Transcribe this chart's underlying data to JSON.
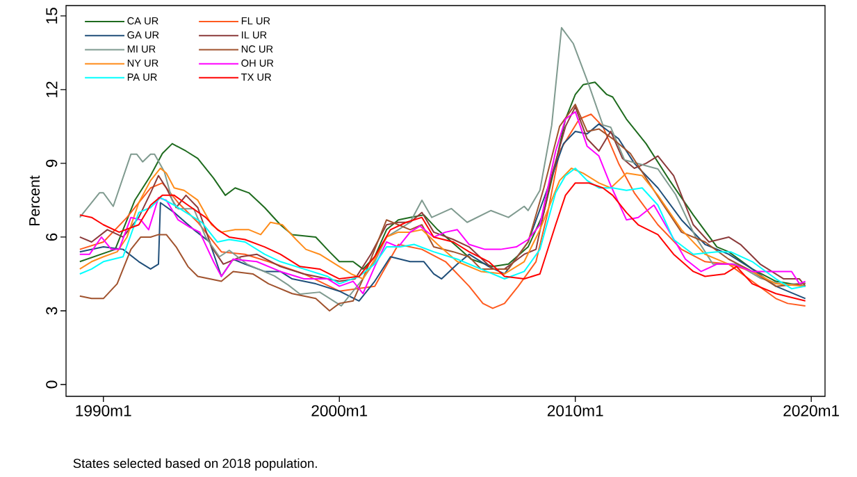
{
  "chart_data": {
    "type": "line",
    "ylabel": "Percent",
    "annotations": [
      "States selected based on 2018 population."
    ],
    "xlim": [
      "1988-06",
      "2020-08"
    ],
    "ylim": [
      -0.48,
      15.42
    ],
    "xticks": [
      {
        "value": "1990-01",
        "label": "1990m1"
      },
      {
        "value": "2000-01",
        "label": "2000m1"
      },
      {
        "value": "2010-01",
        "label": "2010m1"
      },
      {
        "value": "2020-01",
        "label": "2020m1"
      }
    ],
    "yticks": [
      0,
      3,
      6,
      9,
      12,
      15
    ],
    "grid": false,
    "legend": "top left",
    "marker": "none",
    "line_style": "solid",
    "series": [
      {
        "name": "CA UR",
        "color": "#1e6b1e",
        "x": [
          "1989-01",
          "1990-07",
          "1991-05",
          "1992-01",
          "1992-07",
          "1992-12",
          "1993-07",
          "1994-01",
          "1994-09",
          "1995-03",
          "1995-08",
          "1996-03",
          "1996-11",
          "1997-07",
          "1998-01",
          "1999-01",
          "1999-08",
          "2000-01",
          "2000-08",
          "2001-01",
          "2001-07",
          "2002-01",
          "2002-07",
          "2003-01",
          "2003-08",
          "2004-03",
          "2005-01",
          "2005-08",
          "2006-07",
          "2007-03",
          "2008-01",
          "2008-09",
          "2009-03",
          "2009-08",
          "2010-01",
          "2010-05",
          "2010-11",
          "2011-05",
          "2011-08",
          "2012-03",
          "2013-01",
          "2014-01",
          "2015-01",
          "2016-01",
          "2016-07",
          "2017-07",
          "2018-07",
          "2019-10"
        ],
        "values": [
          5.0,
          5.5,
          7.5,
          8.5,
          9.4,
          9.8,
          9.5,
          9.2,
          8.4,
          7.7,
          8.0,
          7.8,
          7.2,
          6.5,
          6.1,
          6.0,
          5.4,
          5.0,
          5.0,
          4.7,
          5.2,
          6.3,
          6.7,
          6.8,
          6.9,
          6.3,
          5.6,
          5.1,
          4.8,
          4.9,
          5.6,
          7.0,
          9.0,
          10.8,
          11.8,
          12.2,
          12.3,
          11.8,
          11.7,
          10.8,
          9.8,
          8.3,
          6.9,
          5.6,
          5.4,
          4.7,
          4.2,
          4.0
        ]
      },
      {
        "name": "FL UR",
        "color": "#ff5a1e",
        "x": [
          "1989-01",
          "1990-01",
          "1991-01",
          "1992-01",
          "1992-07",
          "1993-03",
          "1994-01",
          "1995-01",
          "1996-01",
          "1997-01",
          "1998-07",
          "2000-01",
          "2001-07",
          "2002-07",
          "2003-07",
          "2004-07",
          "2005-07",
          "2006-02",
          "2006-07",
          "2007-01",
          "2007-08",
          "2008-05",
          "2008-11",
          "2009-05",
          "2010-03",
          "2010-09",
          "2011-03",
          "2011-11",
          "2012-07",
          "2013-07",
          "2014-07",
          "2015-07",
          "2016-07",
          "2017-07",
          "2018-07",
          "2019-01",
          "2019-10"
        ],
        "values": [
          5.5,
          5.8,
          6.8,
          8.0,
          8.2,
          7.4,
          6.6,
          5.4,
          5.3,
          5.0,
          4.5,
          3.8,
          4.0,
          5.7,
          5.5,
          5.0,
          4.0,
          3.3,
          3.1,
          3.3,
          4.0,
          5.0,
          7.0,
          9.5,
          10.8,
          11.0,
          10.5,
          9.0,
          7.8,
          6.5,
          5.5,
          5.0,
          4.9,
          4.2,
          3.5,
          3.3,
          3.2
        ]
      },
      {
        "name": "GA UR",
        "color": "#1f4e79",
        "x": [
          "1989-01",
          "1990-01",
          "1990-11",
          "1991-07",
          "1992-01",
          "1992-05",
          "1992-06",
          "1993-01",
          "1993-11",
          "1994-07",
          "1995-01",
          "1995-07",
          "1996-01",
          "1996-11",
          "1997-07",
          "1998-01",
          "1999-01",
          "2000-01",
          "2000-11",
          "2001-07",
          "2002-03",
          "2003-01",
          "2003-08",
          "2004-01",
          "2004-05",
          "2005-01",
          "2005-07",
          "2006-05",
          "2007-01",
          "2008-01",
          "2008-11",
          "2009-07",
          "2010-01",
          "2010-07",
          "2011-01",
          "2011-11",
          "2012-07",
          "2013-07",
          "2014-07",
          "2015-07",
          "2016-07",
          "2017-07",
          "2018-07",
          "2019-10"
        ],
        "values": [
          5.4,
          5.6,
          5.5,
          5.0,
          4.7,
          4.9,
          7.4,
          7.0,
          6.3,
          5.8,
          4.4,
          5.1,
          4.9,
          4.6,
          4.6,
          4.3,
          4.1,
          3.8,
          3.4,
          4.2,
          5.2,
          5.0,
          5.0,
          4.5,
          4.3,
          4.9,
          5.3,
          4.8,
          4.5,
          5.8,
          8.0,
          9.8,
          10.3,
          10.2,
          10.6,
          10.0,
          9.0,
          8.0,
          6.7,
          5.7,
          5.3,
          4.7,
          4.0,
          3.5
        ]
      },
      {
        "name": "IL UR",
        "color": "#8b3a3a",
        "x": [
          "1989-01",
          "1989-07",
          "1990-03",
          "1990-11",
          "1991-07",
          "1992-01",
          "1992-05",
          "1992-09",
          "1993-02",
          "1993-07",
          "1994-01",
          "1994-08",
          "1995-02",
          "1995-11",
          "1996-07",
          "1997-07",
          "1998-07",
          "1999-07",
          "2000-01",
          "2000-09",
          "2001-05",
          "2002-01",
          "2002-07",
          "2003-01",
          "2003-07",
          "2004-01",
          "2004-11",
          "2005-07",
          "2006-07",
          "2007-01",
          "2007-11",
          "2008-05",
          "2009-01",
          "2009-08",
          "2010-01",
          "2010-07",
          "2011-01",
          "2011-07",
          "2012-01",
          "2012-07",
          "2013-01",
          "2013-07",
          "2014-03",
          "2015-01",
          "2015-09",
          "2016-07",
          "2017-01",
          "2017-11",
          "2018-11",
          "2019-07",
          "2019-10"
        ],
        "values": [
          6.0,
          5.8,
          6.3,
          6.0,
          6.8,
          7.8,
          8.5,
          8.0,
          7.2,
          7.7,
          7.2,
          5.6,
          4.9,
          5.2,
          5.3,
          4.8,
          4.5,
          4.3,
          4.2,
          4.3,
          5.3,
          6.5,
          6.6,
          6.6,
          7.0,
          6.2,
          5.9,
          5.6,
          4.7,
          4.7,
          5.3,
          5.5,
          8.5,
          10.5,
          11.3,
          10.0,
          9.5,
          10.3,
          9.2,
          8.8,
          9.0,
          9.3,
          8.5,
          6.5,
          5.8,
          6.0,
          5.7,
          4.9,
          4.3,
          4.3,
          4.0
        ]
      },
      {
        "name": "MI UR",
        "color": "#7f9a8f",
        "x": [
          "1989-01",
          "1989-11",
          "1990-01",
          "1990-06",
          "1991-03",
          "1991-06",
          "1991-09",
          "1992-01",
          "1992-03",
          "1992-08",
          "1992-12",
          "1993-03",
          "1993-11",
          "1994-05",
          "1994-12",
          "1995-05",
          "1996-02",
          "1997-04",
          "1997-11",
          "1998-05",
          "1999-03",
          "2000-02",
          "2001-01",
          "2001-07",
          "2002-01",
          "2002-07",
          "2003-01",
          "2003-07",
          "2003-12",
          "2004-10",
          "2005-06",
          "2006-06",
          "2007-03",
          "2007-11",
          "2008-01",
          "2008-07",
          "2009-01",
          "2009-06",
          "2009-12",
          "2010-08",
          "2011-03",
          "2011-07",
          "2012-02",
          "2013-07",
          "2014-04",
          "2015-02",
          "2015-11",
          "2016-11",
          "2017-11",
          "2018-11",
          "2019-10"
        ],
        "values": [
          6.8,
          7.8,
          7.8,
          7.25,
          9.37,
          9.37,
          9.06,
          9.37,
          9.37,
          8.66,
          7.5,
          7.15,
          7.15,
          6.0,
          5.2,
          5.46,
          4.9,
          4.42,
          4.05,
          3.68,
          3.76,
          3.2,
          4.3,
          5.0,
          6.0,
          6.3,
          6.6,
          7.5,
          6.8,
          7.16,
          6.6,
          7.08,
          6.8,
          7.25,
          7.08,
          7.9,
          10.55,
          14.52,
          13.87,
          12.17,
          10.56,
          10.47,
          9.14,
          8.77,
          7.73,
          6.03,
          4.9,
          4.9,
          4.33,
          4.05,
          4.13
        ]
      },
      {
        "name": "NC UR",
        "color": "#a0522d",
        "x": [
          "1989-01",
          "1989-07",
          "1990-01",
          "1990-08",
          "1991-03",
          "1991-08",
          "1992-01",
          "1992-05",
          "1992-09",
          "1993-02",
          "1993-08",
          "1994-01",
          "1995-01",
          "1995-07",
          "1996-05",
          "1997-01",
          "1998-01",
          "1999-01",
          "1999-08",
          "2000-01",
          "2000-08",
          "2001-01",
          "2001-07",
          "2002-01",
          "2002-07",
          "2003-01",
          "2003-07",
          "2004-01",
          "2004-11",
          "2005-07",
          "2006-01",
          "2006-09",
          "2007-03",
          "2008-01",
          "2008-09",
          "2009-05",
          "2010-01",
          "2010-07",
          "2011-01",
          "2011-08",
          "2012-05",
          "2013-01",
          "2013-09",
          "2014-07",
          "2015-07",
          "2016-07",
          "2017-07",
          "2018-07",
          "2019-10"
        ],
        "values": [
          3.6,
          3.5,
          3.5,
          4.1,
          5.5,
          6.0,
          6.0,
          6.1,
          6.1,
          5.6,
          4.8,
          4.4,
          4.2,
          4.6,
          4.5,
          4.1,
          3.7,
          3.5,
          3.0,
          3.3,
          3.4,
          4.3,
          5.5,
          6.7,
          6.5,
          6.3,
          6.5,
          5.6,
          5.4,
          5.2,
          4.7,
          4.7,
          4.7,
          5.8,
          8.0,
          10.5,
          11.4,
          10.3,
          10.4,
          10.0,
          9.4,
          8.4,
          7.4,
          6.2,
          5.8,
          5.1,
          4.6,
          4.0,
          4.1
        ]
      },
      {
        "name": "NY UR",
        "color": "#ff8c1a",
        "x": [
          "1989-01",
          "1989-07",
          "1990-01",
          "1990-08",
          "1991-01",
          "1991-07",
          "1992-01",
          "1992-06",
          "1992-09",
          "1993-01",
          "1993-06",
          "1994-01",
          "1994-08",
          "1995-01",
          "1995-08",
          "1996-03",
          "1996-09",
          "1997-02",
          "1997-08",
          "1998-03",
          "1998-08",
          "1999-03",
          "2000-01",
          "2000-07",
          "2001-01",
          "2001-07",
          "2002-01",
          "2002-07",
          "2003-01",
          "2003-07",
          "2004-03",
          "2005-01",
          "2006-01",
          "2007-01",
          "2007-11",
          "2008-07",
          "2009-05",
          "2009-11",
          "2010-05",
          "2011-01",
          "2011-07",
          "2012-03",
          "2012-11",
          "2013-07",
          "2014-07",
          "2015-07",
          "2016-07",
          "2017-07",
          "2018-07",
          "2019-10"
        ],
        "values": [
          4.7,
          5.0,
          5.2,
          5.4,
          6.0,
          7.4,
          8.3,
          8.8,
          8.6,
          8.0,
          7.9,
          7.5,
          6.5,
          6.2,
          6.3,
          6.3,
          6.1,
          6.6,
          6.5,
          5.9,
          5.5,
          5.3,
          4.8,
          4.5,
          4.3,
          5.1,
          6.0,
          6.2,
          6.2,
          6.3,
          5.7,
          5.0,
          4.6,
          4.5,
          5.0,
          6.3,
          8.3,
          8.8,
          8.6,
          8.2,
          8.0,
          8.6,
          8.5,
          7.7,
          6.3,
          5.3,
          4.9,
          4.6,
          4.1,
          4.0
        ]
      },
      {
        "name": "OH UR",
        "color": "#ff00ff",
        "x": [
          "1989-01",
          "1989-06",
          "1989-12",
          "1990-05",
          "1990-09",
          "1991-03",
          "1991-08",
          "1991-12",
          "1992-05",
          "1992-09",
          "1993-03",
          "1993-09",
          "1994-02",
          "1994-09",
          "1995-01",
          "1995-07",
          "1996-07",
          "1997-07",
          "1998-07",
          "1999-07",
          "2000-01",
          "2000-08",
          "2001-01",
          "2001-07",
          "2002-01",
          "2002-07",
          "2003-01",
          "2003-06",
          "2004-01",
          "2004-07",
          "2005-01",
          "2005-07",
          "2006-03",
          "2006-11",
          "2007-07",
          "2008-01",
          "2008-07",
          "2009-03",
          "2009-08",
          "2010-01",
          "2010-07",
          "2011-01",
          "2011-07",
          "2012-03",
          "2012-09",
          "2013-05",
          "2014-01",
          "2014-09",
          "2015-05",
          "2016-01",
          "2016-09",
          "2017-07",
          "2018-07",
          "2019-03",
          "2019-07",
          "2019-10"
        ],
        "values": [
          5.3,
          5.3,
          6.0,
          5.5,
          5.5,
          6.8,
          6.7,
          6.3,
          7.6,
          7.5,
          6.7,
          6.4,
          6.2,
          5.0,
          4.4,
          5.1,
          5.0,
          4.6,
          4.3,
          4.3,
          4.0,
          4.2,
          3.7,
          4.8,
          5.8,
          5.6,
          6.2,
          6.45,
          6.0,
          6.2,
          6.3,
          5.7,
          5.5,
          5.5,
          5.6,
          5.9,
          6.5,
          9.5,
          10.8,
          11.1,
          9.7,
          9.3,
          8.1,
          6.7,
          6.8,
          7.3,
          6.2,
          5.1,
          4.6,
          4.9,
          4.9,
          4.6,
          4.6,
          4.6,
          4.1,
          4.2
        ]
      },
      {
        "name": "PA UR",
        "color": "#00ffff",
        "x": [
          "1989-01",
          "1989-07",
          "1990-01",
          "1990-11",
          "1991-07",
          "1992-01",
          "1992-06",
          "1993-01",
          "1993-07",
          "1994-03",
          "1994-11",
          "1995-05",
          "1996-01",
          "1996-11",
          "1997-07",
          "1998-07",
          "1999-07",
          "2000-01",
          "2000-11",
          "2001-07",
          "2002-01",
          "2002-08",
          "2003-03",
          "2004-01",
          "2005-01",
          "2006-01",
          "2007-01",
          "2007-11",
          "2008-07",
          "2009-03",
          "2009-08",
          "2010-01",
          "2010-07",
          "2011-01",
          "2011-08",
          "2012-03",
          "2012-11",
          "2013-07",
          "2014-03",
          "2015-01",
          "2016-01",
          "2016-08",
          "2017-07",
          "2018-07",
          "2019-03",
          "2019-10"
        ],
        "values": [
          4.5,
          4.7,
          5.0,
          5.2,
          7.0,
          7.2,
          7.6,
          7.3,
          7.0,
          6.6,
          5.8,
          5.9,
          5.8,
          5.3,
          5.0,
          4.7,
          4.4,
          4.1,
          4.4,
          4.9,
          5.6,
          5.6,
          5.7,
          5.4,
          5.1,
          4.7,
          4.3,
          4.6,
          5.5,
          7.8,
          8.5,
          8.8,
          8.3,
          8.0,
          8.0,
          7.9,
          8.0,
          7.3,
          5.9,
          5.3,
          5.4,
          5.4,
          5.0,
          4.3,
          3.9,
          4.0
        ]
      },
      {
        "name": "TX UR",
        "color": "#ff0000",
        "x": [
          "1989-01",
          "1989-07",
          "1990-01",
          "1990-09",
          "1991-07",
          "1992-01",
          "1992-07",
          "1993-01",
          "1993-08",
          "1994-05",
          "1994-11",
          "1995-05",
          "1996-01",
          "1996-11",
          "1997-07",
          "1998-05",
          "1999-03",
          "2000-01",
          "2000-11",
          "2001-07",
          "2002-03",
          "2002-11",
          "2003-07",
          "2004-01",
          "2004-11",
          "2005-07",
          "2006-05",
          "2007-01",
          "2007-11",
          "2008-07",
          "2009-03",
          "2009-08",
          "2010-01",
          "2010-08",
          "2011-03",
          "2011-08",
          "2012-03",
          "2012-09",
          "2013-07",
          "2014-03",
          "2015-01",
          "2015-07",
          "2016-05",
          "2016-11",
          "2017-07",
          "2018-07",
          "2019-05",
          "2019-10"
        ],
        "values": [
          6.9,
          6.8,
          6.5,
          6.2,
          6.5,
          7.3,
          7.7,
          7.7,
          7.3,
          6.8,
          6.3,
          6.0,
          5.9,
          5.6,
          5.3,
          4.8,
          4.7,
          4.3,
          4.4,
          5.2,
          6.3,
          6.6,
          6.8,
          6.0,
          5.8,
          5.4,
          5.0,
          4.4,
          4.3,
          4.5,
          6.5,
          7.7,
          8.2,
          8.2,
          8.0,
          7.7,
          7.0,
          6.5,
          6.1,
          5.3,
          4.6,
          4.4,
          4.5,
          4.8,
          4.1,
          3.7,
          3.5,
          3.4
        ]
      }
    ]
  }
}
